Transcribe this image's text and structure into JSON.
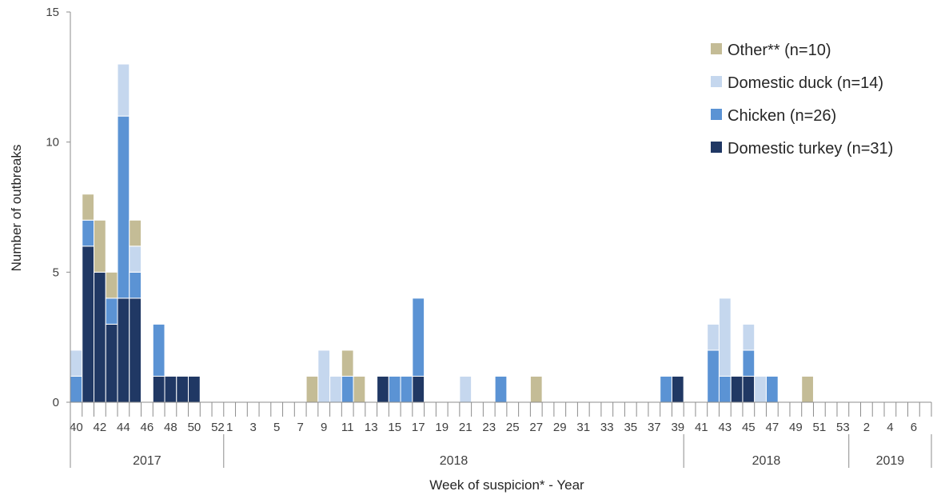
{
  "chart_data": {
    "type": "bar",
    "stacked": true,
    "title": "",
    "xlabel": "Week of suspicion* - Year",
    "ylabel": "Number of outbreaks",
    "ylim": [
      0,
      15
    ],
    "yticks": [
      0,
      5,
      10,
      15
    ],
    "grid": false,
    "legend_position": "top-right",
    "categories": [
      "40",
      "41",
      "42",
      "43",
      "44",
      "45",
      "46",
      "47",
      "48",
      "49",
      "50",
      "51",
      "52",
      "1",
      "2",
      "3",
      "4",
      "5",
      "6",
      "7",
      "8",
      "9",
      "10",
      "11",
      "12",
      "13",
      "14",
      "15",
      "16",
      "17",
      "18",
      "19",
      "20",
      "21",
      "22",
      "23",
      "24",
      "25",
      "26",
      "27",
      "28",
      "29",
      "30",
      "31",
      "32",
      "33",
      "34",
      "35",
      "36",
      "37",
      "38",
      "39",
      "40",
      "41",
      "42",
      "43",
      "44",
      "45",
      "46",
      "47",
      "48",
      "49",
      "50",
      "51",
      "52",
      "53",
      "1",
      "2",
      "3",
      "4",
      "5",
      "6",
      "7"
    ],
    "tick_labels": [
      "40",
      "",
      "42",
      "",
      "44",
      "",
      "46",
      "",
      "48",
      "",
      "50",
      "",
      "52",
      "1",
      "",
      "3",
      "",
      "5",
      "",
      "7",
      "",
      "9",
      "",
      "11",
      "",
      "13",
      "",
      "15",
      "",
      "17",
      "",
      "19",
      "",
      "21",
      "",
      "23",
      "",
      "25",
      "",
      "27",
      "",
      "29",
      "",
      "31",
      "",
      "33",
      "",
      "35",
      "",
      "37",
      "",
      "39",
      "",
      "41",
      "",
      "43",
      "",
      "45",
      "",
      "47",
      "",
      "49",
      "",
      "51",
      "",
      "53",
      "",
      "2",
      "",
      "4",
      "",
      "6",
      ""
    ],
    "groups": [
      {
        "label": "2017",
        "start": 0,
        "end": 12
      },
      {
        "label": "2018",
        "start": 13,
        "end": 51
      },
      {
        "label": "2018",
        "start": 52,
        "end": 65
      },
      {
        "label": "2019",
        "start": 66,
        "end": 72
      }
    ],
    "series": [
      {
        "name": "Domestic turkey (n=31)",
        "color": "#203864",
        "values": [
          0,
          6,
          5,
          3,
          4,
          4,
          0,
          1,
          1,
          1,
          1,
          0,
          0,
          0,
          0,
          0,
          0,
          0,
          0,
          0,
          0,
          0,
          0,
          0,
          0,
          0,
          1,
          0,
          0,
          1,
          0,
          0,
          0,
          0,
          0,
          0,
          0,
          0,
          0,
          0,
          0,
          0,
          0,
          0,
          0,
          0,
          0,
          0,
          0,
          0,
          0,
          1,
          0,
          0,
          0,
          0,
          1,
          1,
          0,
          0,
          0,
          0,
          0,
          0,
          0,
          0,
          0,
          0,
          0,
          0,
          0,
          0,
          0
        ]
      },
      {
        "name": "Chicken (n=26)",
        "color": "#5b93d4",
        "values": [
          1,
          1,
          0,
          1,
          7,
          1,
          0,
          2,
          0,
          0,
          0,
          0,
          0,
          0,
          0,
          0,
          0,
          0,
          0,
          0,
          0,
          0,
          0,
          1,
          0,
          0,
          0,
          1,
          1,
          3,
          0,
          0,
          0,
          0,
          0,
          0,
          1,
          0,
          0,
          0,
          0,
          0,
          0,
          0,
          0,
          0,
          0,
          0,
          0,
          0,
          1,
          0,
          0,
          0,
          2,
          1,
          0,
          1,
          0,
          1,
          0,
          0,
          0,
          0,
          0,
          0,
          0,
          0,
          0,
          0,
          0,
          0,
          0
        ]
      },
      {
        "name": "Domestic duck (n=14)",
        "color": "#c5d7ee",
        "values": [
          1,
          0,
          0,
          0,
          2,
          1,
          0,
          0,
          0,
          0,
          0,
          0,
          0,
          0,
          0,
          0,
          0,
          0,
          0,
          0,
          0,
          2,
          1,
          0,
          0,
          0,
          0,
          0,
          0,
          0,
          0,
          0,
          0,
          1,
          0,
          0,
          0,
          0,
          0,
          0,
          0,
          0,
          0,
          0,
          0,
          0,
          0,
          0,
          0,
          0,
          0,
          0,
          0,
          0,
          1,
          3,
          0,
          1,
          1,
          0,
          0,
          0,
          0,
          0,
          0,
          0,
          0,
          0,
          0,
          0,
          0,
          0,
          0
        ]
      },
      {
        "name": "Other** (n=10)",
        "color": "#c4bc96",
        "values": [
          0,
          1,
          2,
          1,
          0,
          1,
          0,
          0,
          0,
          0,
          0,
          0,
          0,
          0,
          0,
          0,
          0,
          0,
          0,
          0,
          1,
          0,
          0,
          1,
          1,
          0,
          0,
          0,
          0,
          0,
          0,
          0,
          0,
          0,
          0,
          0,
          0,
          0,
          0,
          1,
          0,
          0,
          0,
          0,
          0,
          0,
          0,
          0,
          0,
          0,
          0,
          0,
          0,
          0,
          0,
          0,
          0,
          0,
          0,
          0,
          0,
          0,
          1,
          0,
          0,
          0,
          0,
          0,
          0,
          0,
          0,
          0,
          0
        ]
      }
    ],
    "legend_order": [
      "Other** (n=10)",
      "Domestic duck (n=14)",
      "Chicken (n=26)",
      "Domestic turkey (n=31)"
    ]
  }
}
